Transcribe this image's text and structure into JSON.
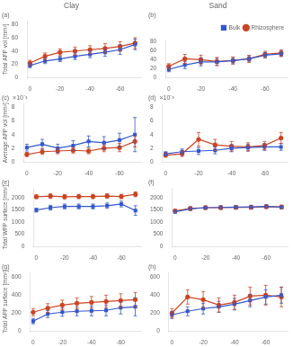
{
  "chart_data": [
    {
      "type": "line",
      "title": "Clay",
      "annotations": [
        "(a)"
      ],
      "x": [
        0,
        -10,
        -20,
        -30,
        -40,
        -50,
        -60,
        -70
      ],
      "xlim": [
        2,
        -74
      ],
      "xticks": [
        0,
        -20,
        -40,
        -60
      ],
      "ylim": [
        0,
        85
      ],
      "yticks": [
        0,
        20,
        40,
        60,
        80
      ],
      "ylabel": "Total AFP vol [mm³]",
      "grid": false,
      "series": [
        {
          "name": "Bulk",
          "color": "#3357cc",
          "marker": "square",
          "values": [
            18,
            25,
            28,
            32,
            35,
            38,
            42,
            50
          ],
          "errors": [
            3,
            4,
            4,
            5,
            5,
            6,
            7,
            8
          ]
        },
        {
          "name": "Rhizosphere",
          "color": "#cc4422",
          "marker": "circle",
          "values": [
            22,
            32,
            38,
            40,
            42,
            44,
            47,
            52
          ],
          "errors": [
            4,
            5,
            5,
            6,
            6,
            7,
            7,
            8
          ]
        }
      ]
    },
    {
      "type": "line",
      "title": "Sand",
      "annotations": [
        "(b)"
      ],
      "x": [
        0,
        -10,
        -20,
        -30,
        -40,
        -50,
        -60,
        -70
      ],
      "xlim": [
        2,
        -74
      ],
      "xticks": [
        0,
        -20,
        -40,
        -60
      ],
      "ylim": [
        0,
        85
      ],
      "yticks": [
        0,
        20,
        40,
        60,
        80
      ],
      "grid": false,
      "legend": "upper right",
      "series": [
        {
          "name": "Bulk",
          "color": "#3357cc",
          "marker": "square",
          "values": [
            18,
            28,
            35,
            35,
            38,
            42,
            50,
            53
          ],
          "errors": [
            5,
            8,
            9,
            8,
            7,
            7,
            6,
            6
          ]
        },
        {
          "name": "Rhizosphere",
          "color": "#cc4422",
          "marker": "circle",
          "values": [
            25,
            42,
            40,
            36,
            38,
            42,
            52,
            55
          ],
          "errors": [
            6,
            10,
            10,
            9,
            8,
            8,
            7,
            7
          ]
        }
      ]
    },
    {
      "type": "line",
      "annotations": [
        "(c)",
        "×10⁻³"
      ],
      "x": [
        0,
        -10,
        -20,
        -30,
        -40,
        -50,
        -60,
        -70
      ],
      "xlim": [
        2,
        -74
      ],
      "xticks": [
        0,
        -20,
        -40,
        -60
      ],
      "ylim": [
        0,
        8.5
      ],
      "yticks": [
        0,
        2,
        4,
        6,
        8
      ],
      "ylabel": "Average AFP vol [mm³]",
      "grid": false,
      "series": [
        {
          "name": "Bulk",
          "color": "#3357cc",
          "marker": "square",
          "values": [
            2.1,
            2.6,
            2.0,
            2.4,
            3.0,
            2.8,
            3.2,
            4.0
          ],
          "errors": [
            0.5,
            0.7,
            0.6,
            0.7,
            0.8,
            0.9,
            1.0,
            2.5
          ]
        },
        {
          "name": "Rhizosphere",
          "color": "#cc4422",
          "marker": "circle",
          "values": [
            1.1,
            1.5,
            1.6,
            1.7,
            1.6,
            2.0,
            2.1,
            3.0
          ],
          "errors": [
            0.3,
            0.4,
            0.4,
            0.4,
            0.4,
            0.5,
            0.6,
            0.8
          ]
        }
      ]
    },
    {
      "type": "line",
      "annotations": [
        "(d)",
        "×10⁻³"
      ],
      "x": [
        0,
        -10,
        -20,
        -30,
        -40,
        -50,
        -60,
        -70
      ],
      "xlim": [
        2,
        -74
      ],
      "xticks": [
        0,
        -20,
        -40,
        -60
      ],
      "ylim": [
        0,
        8.5
      ],
      "yticks": [
        0,
        2,
        4,
        6,
        8
      ],
      "grid": false,
      "series": [
        {
          "name": "Bulk",
          "color": "#3357cc",
          "marker": "square",
          "values": [
            1.2,
            1.5,
            1.6,
            1.7,
            2.0,
            2.1,
            2.2,
            2.2
          ],
          "errors": [
            0.3,
            0.4,
            0.5,
            0.5,
            0.5,
            0.5,
            0.5,
            0.5
          ]
        },
        {
          "name": "Rhizosphere",
          "color": "#cc4422",
          "marker": "circle",
          "values": [
            1.0,
            1.2,
            3.3,
            2.5,
            2.3,
            2.2,
            2.4,
            3.5
          ],
          "errors": [
            0.3,
            0.4,
            1.0,
            0.8,
            0.7,
            0.6,
            0.6,
            0.8
          ]
        }
      ]
    },
    {
      "type": "line",
      "annotations": [
        "(e)"
      ],
      "x": [
        0,
        -10,
        -20,
        -30,
        -40,
        -50,
        -60,
        -70
      ],
      "xlim": [
        2,
        -74
      ],
      "xticks": [
        0,
        -20,
        -40,
        -60
      ],
      "ylim": [
        0,
        2400
      ],
      "yticks": [
        0,
        500,
        1000,
        1500,
        2000
      ],
      "ylabel": "Total WFP surface [mm²]",
      "grid": false,
      "series": [
        {
          "name": "Bulk",
          "color": "#3357cc",
          "marker": "square",
          "values": [
            1500,
            1600,
            1650,
            1650,
            1650,
            1680,
            1750,
            1480
          ],
          "errors": [
            80,
            100,
            100,
            100,
            100,
            110,
            120,
            200
          ]
        },
        {
          "name": "Rhizosphere",
          "color": "#cc4422",
          "marker": "circle",
          "values": [
            2050,
            2080,
            2050,
            2060,
            2060,
            2080,
            2060,
            2150
          ],
          "errors": [
            80,
            90,
            90,
            90,
            90,
            90,
            90,
            100
          ]
        }
      ]
    },
    {
      "type": "line",
      "annotations": [
        "(f)"
      ],
      "x": [
        0,
        -10,
        -20,
        -30,
        -40,
        -50,
        -60,
        -70
      ],
      "xlim": [
        2,
        -74
      ],
      "xticks": [
        0,
        -20,
        -40,
        -60
      ],
      "ylim": [
        0,
        2400
      ],
      "yticks": [
        0,
        500,
        1000,
        1500,
        2000
      ],
      "grid": false,
      "series": [
        {
          "name": "Bulk",
          "color": "#3357cc",
          "marker": "square",
          "values": [
            1430,
            1550,
            1600,
            1610,
            1620,
            1630,
            1650,
            1620
          ],
          "errors": [
            60,
            70,
            70,
            70,
            70,
            70,
            70,
            70
          ]
        },
        {
          "name": "Rhizosphere",
          "color": "#cc4422",
          "marker": "circle",
          "values": [
            1470,
            1570,
            1600,
            1600,
            1610,
            1610,
            1640,
            1630
          ],
          "errors": [
            60,
            70,
            70,
            70,
            70,
            70,
            70,
            70
          ]
        }
      ]
    },
    {
      "type": "line",
      "annotations": [
        "(g)"
      ],
      "x": [
        0,
        -10,
        -20,
        -30,
        -40,
        -50,
        -60,
        -70
      ],
      "xlim": [
        2,
        -74
      ],
      "xticks": [
        0,
        -20,
        -40,
        -60
      ],
      "ylim": [
        0,
        650
      ],
      "yticks": [
        0,
        200,
        400,
        600
      ],
      "ylabel": "Total AFP surface [mm²]",
      "grid": false,
      "series": [
        {
          "name": "Bulk",
          "color": "#3357cc",
          "marker": "square",
          "values": [
            110,
            190,
            210,
            220,
            225,
            230,
            260,
            270
          ],
          "errors": [
            30,
            40,
            45,
            50,
            55,
            60,
            70,
            100
          ]
        },
        {
          "name": "Rhizosphere",
          "color": "#cc4422",
          "marker": "circle",
          "values": [
            210,
            255,
            290,
            310,
            320,
            330,
            340,
            350
          ],
          "errors": [
            40,
            50,
            55,
            60,
            65,
            70,
            75,
            80
          ]
        }
      ]
    },
    {
      "type": "line",
      "annotations": [
        "(h)"
      ],
      "x": [
        0,
        -10,
        -20,
        -30,
        -40,
        -50,
        -60,
        -70
      ],
      "xlim": [
        2,
        -74
      ],
      "xticks": [
        0,
        -20,
        -40,
        -60
      ],
      "ylim": [
        0,
        650
      ],
      "yticks": [
        0,
        200,
        400,
        600
      ],
      "grid": false,
      "series": [
        {
          "name": "Bulk",
          "color": "#3357cc",
          "marker": "square",
          "values": [
            180,
            220,
            250,
            270,
            300,
            340,
            380,
            400
          ],
          "errors": [
            40,
            50,
            60,
            60,
            65,
            70,
            80,
            90
          ]
        },
        {
          "name": "Rhizosphere",
          "color": "#cc4422",
          "marker": "circle",
          "values": [
            200,
            380,
            350,
            290,
            320,
            390,
            400,
            380
          ],
          "errors": [
            50,
            80,
            90,
            80,
            80,
            100,
            110,
            110
          ]
        }
      ]
    }
  ]
}
